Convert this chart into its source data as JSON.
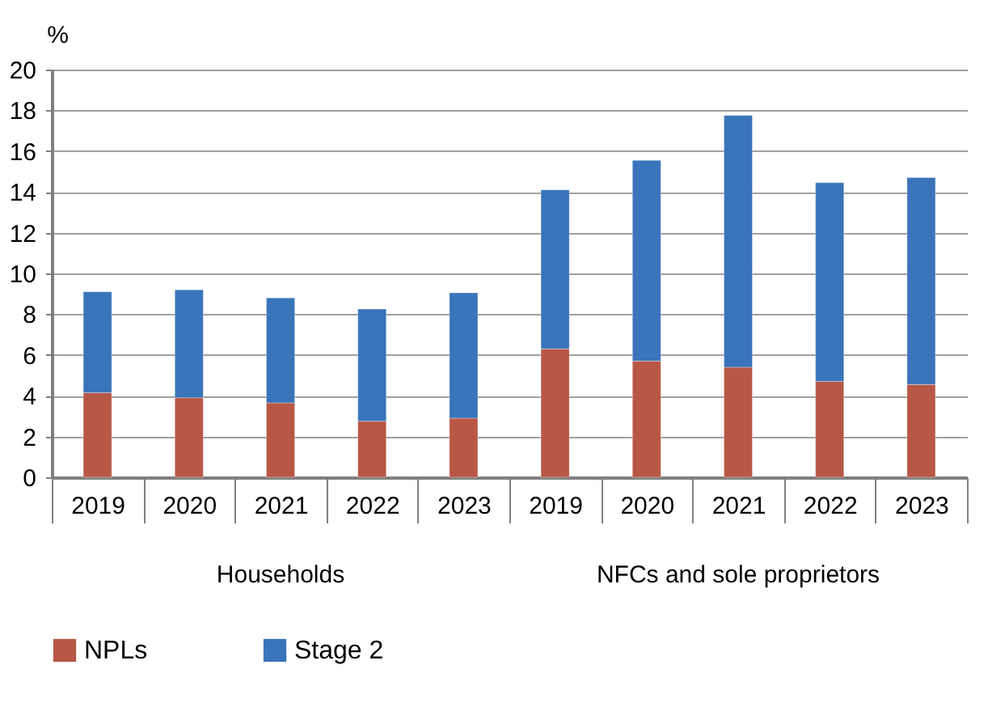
{
  "chart_data": {
    "type": "bar",
    "stacked": true,
    "ylabel": "%",
    "categories": [
      "2019",
      "2020",
      "2021",
      "2022",
      "2023",
      "2019",
      "2020",
      "2021",
      "2022",
      "2023"
    ],
    "annotations": [
      "Households",
      "NFCs and sole proprietors"
    ],
    "series": [
      {
        "name": "NPLs",
        "color": "#b85745",
        "values": [
          4.15,
          3.9,
          3.65,
          2.75,
          2.9,
          6.3,
          5.7,
          5.4,
          4.7,
          4.55
        ]
      },
      {
        "name": "Stage 2",
        "color": "#3a74ba",
        "values": [
          4.95,
          5.3,
          5.15,
          5.5,
          6.15,
          7.8,
          9.85,
          12.35,
          9.75,
          10.15
        ]
      }
    ],
    "ylim": [
      0,
      20
    ],
    "yticks": [
      0,
      2,
      4,
      6,
      8,
      10,
      12,
      14,
      16,
      18,
      20
    ],
    "grid": "y",
    "legend": "bottom"
  }
}
